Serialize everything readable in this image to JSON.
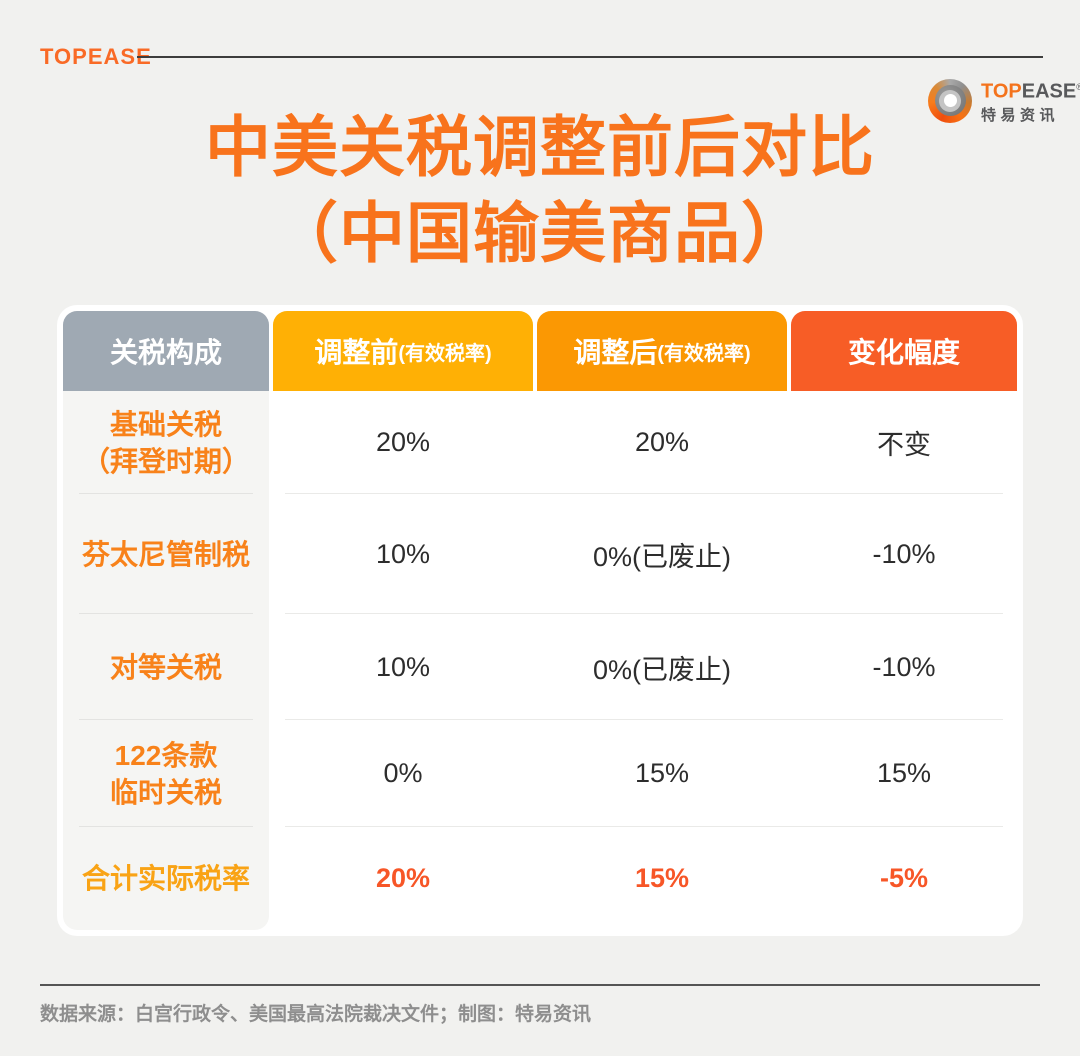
{
  "brand": {
    "wordmark": "TOPEASE",
    "logo_en_top": "TOP",
    "logo_en_ease": "EASE",
    "logo_reg": "®",
    "logo_cn": "特易资讯"
  },
  "title": {
    "line1": "中美关税调整前后对比",
    "line2": "（中国输美商品）"
  },
  "table": {
    "headers": [
      {
        "label": "关税构成",
        "sub": ""
      },
      {
        "label": "调整前",
        "sub": "(有效税率)"
      },
      {
        "label": "调整后",
        "sub": "(有效税率)"
      },
      {
        "label": "变化幅度",
        "sub": ""
      }
    ],
    "rows": [
      {
        "label": "基础关税",
        "label2": "（拜登时期）",
        "before": "20%",
        "after": "20%",
        "change": "不变"
      },
      {
        "label": "芬太尼管制税",
        "label2": "",
        "before": "10%",
        "after": "0%(已废止)",
        "change": "-10%"
      },
      {
        "label": "对等关税",
        "label2": "",
        "before": "10%",
        "after": "0%(已废止)",
        "change": "-10%"
      },
      {
        "label": "122条款",
        "label2": "临时关税",
        "before": "0%",
        "after": "15%",
        "change": "15%"
      },
      {
        "label": "合计实际税率",
        "label2": "",
        "before": "20%",
        "after": "15%",
        "change": "-5%"
      }
    ]
  },
  "footer": {
    "source": "数据来源：白宫行政令、美国最高法院裁决文件；制图：特易资讯"
  },
  "colors": {
    "page_bg": "#F1F1EF",
    "accent_orange": "#F8731C",
    "header_gray": "#9FA9B3",
    "header_yellow": "#FFB005",
    "header_orange": "#FB9803",
    "header_red_orange": "#F75D26",
    "row_label_orange": "#F8821A",
    "total_label_gold": "#F9A315",
    "total_value_red": "#F75627",
    "body_text": "#2D2D2D"
  },
  "chart_data": {
    "type": "table",
    "title": "中美关税调整前后对比（中国输美商品）",
    "columns": [
      "关税构成",
      "调整前(有效税率)",
      "调整后(有效税率)",
      "变化幅度"
    ],
    "rows": [
      [
        "基础关税（拜登时期）",
        "20%",
        "20%",
        "不变"
      ],
      [
        "芬太尼管制税",
        "10%",
        "0%(已废止)",
        "-10%"
      ],
      [
        "对等关税",
        "10%",
        "0%(已废止)",
        "-10%"
      ],
      [
        "122条款临时关税",
        "0%",
        "15%",
        "15%"
      ],
      [
        "合计实际税率",
        "20%",
        "15%",
        "-5%"
      ]
    ]
  }
}
